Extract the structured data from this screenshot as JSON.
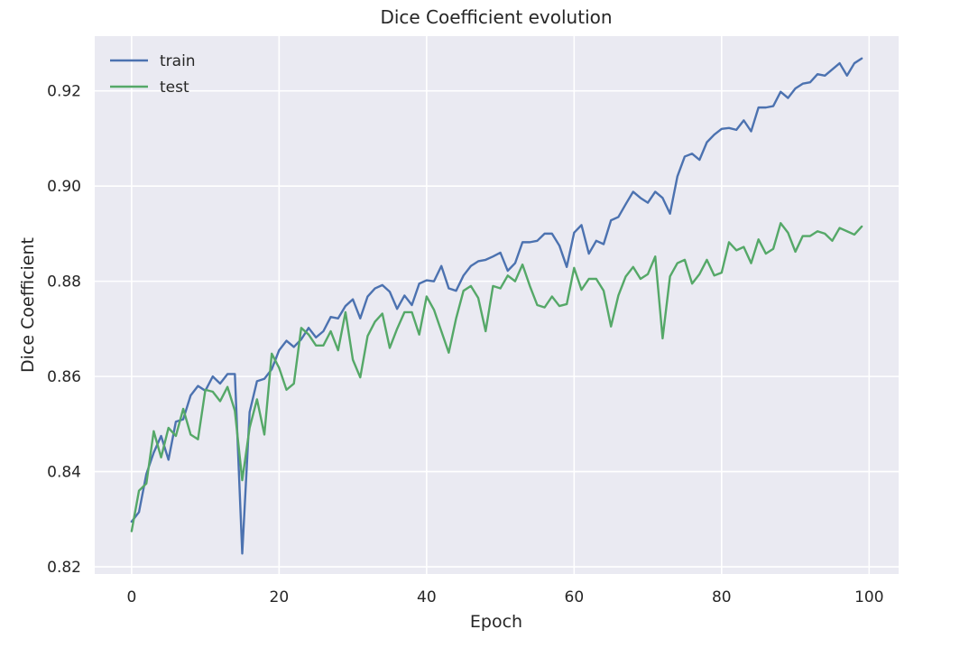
{
  "chart_data": {
    "type": "line",
    "title": "Dice Coefficient evolution",
    "xlabel": "Epoch",
    "ylabel": "Dice Coefficient",
    "xlim": [
      -5,
      104
    ],
    "ylim": [
      0.8185,
      0.9315
    ],
    "xticks": [
      0,
      20,
      40,
      60,
      80,
      100
    ],
    "yticks": [
      0.82,
      0.84,
      0.86,
      0.88,
      0.9,
      0.92
    ],
    "ytick_labels": [
      "0.82",
      "0.84",
      "0.86",
      "0.88",
      "0.90",
      "0.92"
    ],
    "grid": true,
    "legend_position": "top-left",
    "x": [
      0,
      1,
      2,
      3,
      4,
      5,
      6,
      7,
      8,
      9,
      10,
      11,
      12,
      13,
      14,
      15,
      16,
      17,
      18,
      19,
      20,
      21,
      22,
      23,
      24,
      25,
      26,
      27,
      28,
      29,
      30,
      31,
      32,
      33,
      34,
      35,
      36,
      37,
      38,
      39,
      40,
      41,
      42,
      43,
      44,
      45,
      46,
      47,
      48,
      49,
      50,
      51,
      52,
      53,
      54,
      55,
      56,
      57,
      58,
      59,
      60,
      61,
      62,
      63,
      64,
      65,
      66,
      67,
      68,
      69,
      70,
      71,
      72,
      73,
      74,
      75,
      76,
      77,
      78,
      79,
      80,
      81,
      82,
      83,
      84,
      85,
      86,
      87,
      88,
      89,
      90,
      91,
      92,
      93,
      94,
      95,
      96,
      97,
      98,
      99
    ],
    "series": [
      {
        "name": "train",
        "color": "#4c72b0",
        "values": [
          0.8295,
          0.8315,
          0.8395,
          0.844,
          0.8475,
          0.8425,
          0.8505,
          0.851,
          0.856,
          0.858,
          0.857,
          0.86,
          0.8585,
          0.8605,
          0.8605,
          0.8228,
          0.8525,
          0.859,
          0.8595,
          0.8615,
          0.8655,
          0.8675,
          0.8662,
          0.8678,
          0.8702,
          0.8682,
          0.8695,
          0.8725,
          0.8722,
          0.8748,
          0.8762,
          0.8722,
          0.8768,
          0.8785,
          0.8792,
          0.8778,
          0.8742,
          0.877,
          0.875,
          0.8795,
          0.8802,
          0.88,
          0.8832,
          0.8785,
          0.878,
          0.8812,
          0.8832,
          0.8842,
          0.8845,
          0.8852,
          0.886,
          0.8822,
          0.8838,
          0.8882,
          0.8882,
          0.8885,
          0.89,
          0.89,
          0.8875,
          0.883,
          0.8902,
          0.8918,
          0.8858,
          0.8885,
          0.8878,
          0.8928,
          0.8935,
          0.8962,
          0.8988,
          0.8975,
          0.8965,
          0.8988,
          0.8975,
          0.8942,
          0.902,
          0.9062,
          0.9068,
          0.9055,
          0.9092,
          0.9108,
          0.912,
          0.9122,
          0.9118,
          0.9138,
          0.9115,
          0.9165,
          0.9165,
          0.9168,
          0.9198,
          0.9185,
          0.9205,
          0.9215,
          0.9218,
          0.9235,
          0.9232,
          0.9245,
          0.9258,
          0.9232,
          0.9258,
          0.9268
        ]
      },
      {
        "name": "test",
        "color": "#55a868",
        "values": [
          0.8275,
          0.836,
          0.8375,
          0.8485,
          0.843,
          0.8492,
          0.8475,
          0.8532,
          0.8478,
          0.8468,
          0.8572,
          0.8568,
          0.8548,
          0.8578,
          0.8528,
          0.8382,
          0.8492,
          0.8552,
          0.8478,
          0.8648,
          0.8618,
          0.8572,
          0.8585,
          0.8702,
          0.8688,
          0.8665,
          0.8665,
          0.8695,
          0.8655,
          0.8735,
          0.8635,
          0.8598,
          0.8685,
          0.8715,
          0.8732,
          0.866,
          0.87,
          0.8735,
          0.8735,
          0.8688,
          0.8768,
          0.874,
          0.8695,
          0.865,
          0.8722,
          0.878,
          0.879,
          0.8765,
          0.8695,
          0.879,
          0.8785,
          0.8812,
          0.88,
          0.8835,
          0.879,
          0.875,
          0.8745,
          0.8768,
          0.8748,
          0.8752,
          0.8828,
          0.8782,
          0.8805,
          0.8805,
          0.878,
          0.8705,
          0.877,
          0.881,
          0.883,
          0.8805,
          0.8815,
          0.8852,
          0.868,
          0.881,
          0.8838,
          0.8845,
          0.8795,
          0.8815,
          0.8845,
          0.8812,
          0.8818,
          0.8882,
          0.8865,
          0.8872,
          0.8838,
          0.8888,
          0.8858,
          0.8868,
          0.8922,
          0.8902,
          0.8862,
          0.8895,
          0.8895,
          0.8905,
          0.89,
          0.8885,
          0.8912,
          0.8905,
          0.8898,
          0.8915
        ]
      }
    ]
  }
}
